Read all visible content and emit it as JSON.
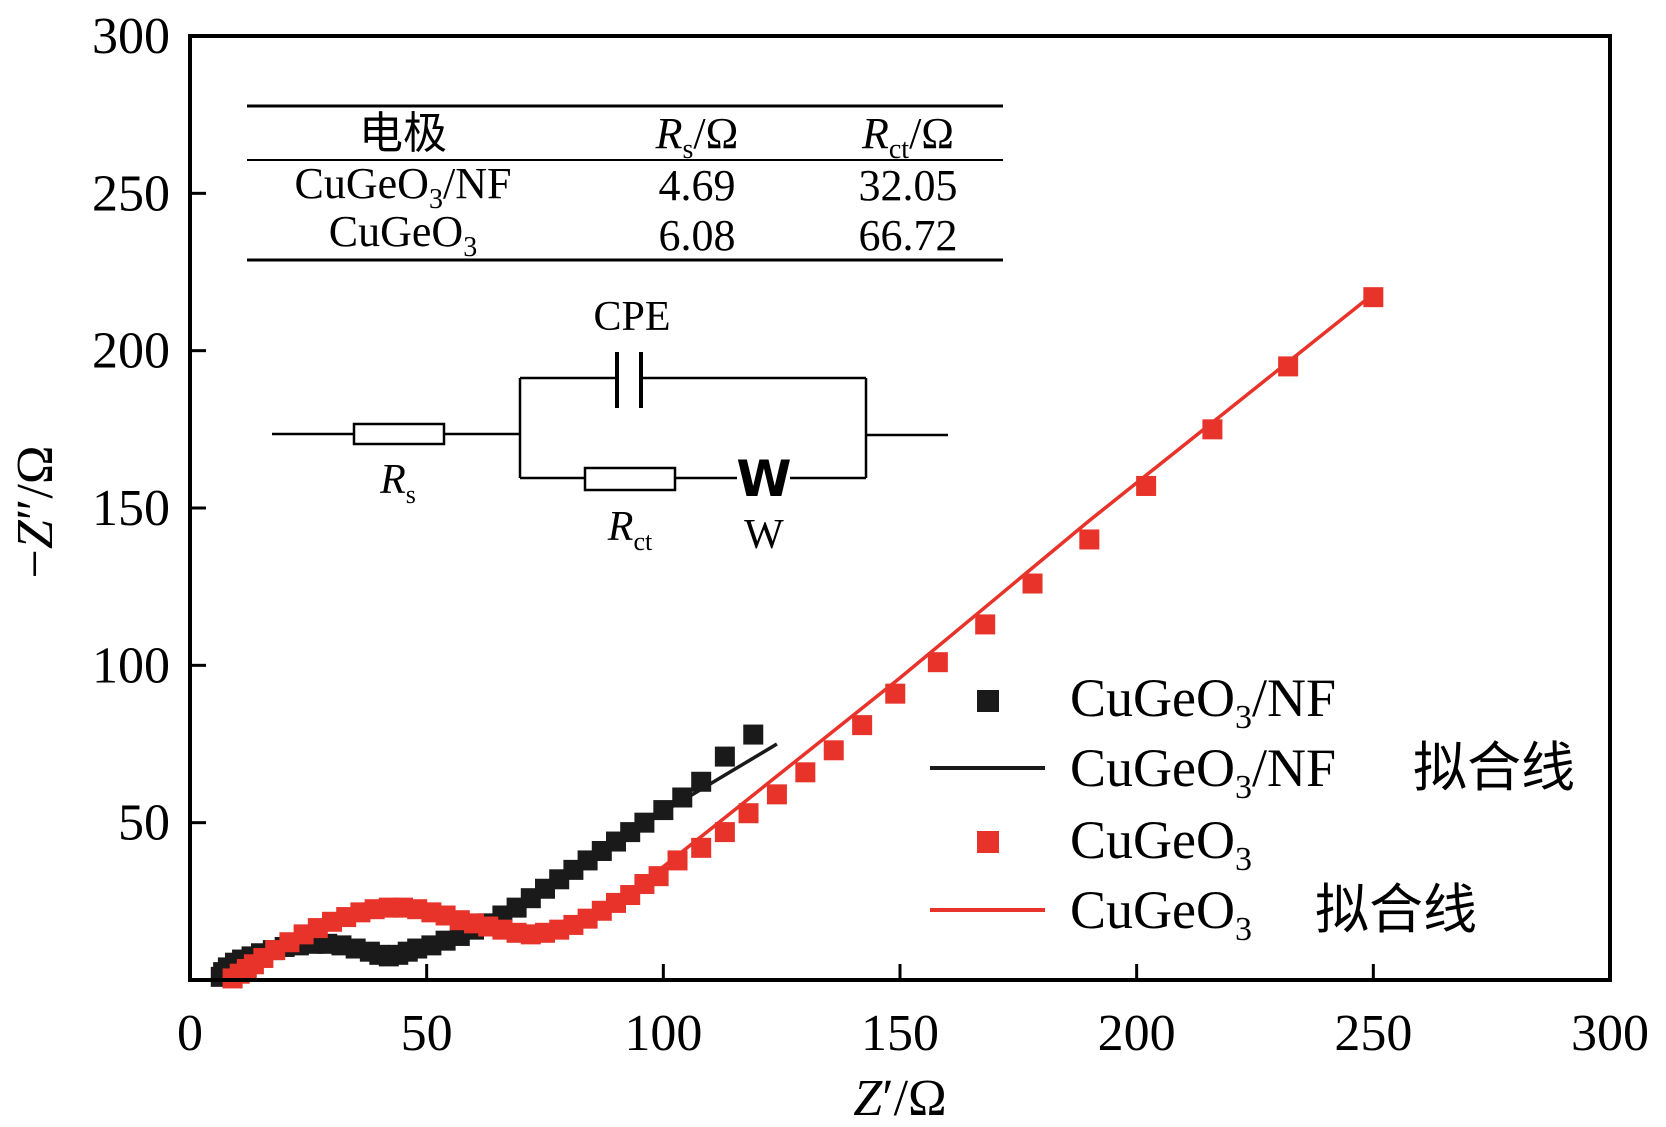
{
  "chart_data": {
    "type": "scatter",
    "xlabel": "Z′/Ω",
    "xlabel_parts": {
      "z": "Z",
      "prime": "′",
      "unit": "/Ω"
    },
    "ylabel": "−Z″/Ω",
    "ylabel_parts": {
      "neg": "−",
      "z": "Z",
      "prime": "″",
      "unit": "/Ω"
    },
    "xlim": [
      0,
      300
    ],
    "ylim": [
      0,
      300
    ],
    "xticks": [
      0,
      50,
      100,
      150,
      200,
      250,
      300
    ],
    "yticks": [
      50,
      100,
      150,
      200,
      250,
      300
    ],
    "colors": {
      "black": "#1a1a1a",
      "red": "#e8332a"
    },
    "series": [
      {
        "name": "CuGeO3/NF",
        "kind": "points",
        "color": "#1a1a1a",
        "points": [
          [
            6.5,
            1
          ],
          [
            7,
            2.5
          ],
          [
            8,
            4
          ],
          [
            9.5,
            5.5
          ],
          [
            11,
            6.5
          ],
          [
            13,
            7.5
          ],
          [
            15,
            8.5
          ],
          [
            17.5,
            9.5
          ],
          [
            20,
            10.5
          ],
          [
            23,
            11
          ],
          [
            26,
            11.5
          ],
          [
            29,
            11.5
          ],
          [
            32,
            11
          ],
          [
            35,
            10
          ],
          [
            38,
            9
          ],
          [
            40,
            8
          ],
          [
            42,
            7.5
          ],
          [
            44,
            8
          ],
          [
            46,
            9
          ],
          [
            48,
            10
          ],
          [
            51,
            11
          ],
          [
            54,
            12.5
          ],
          [
            57,
            14
          ],
          [
            60,
            16
          ],
          [
            63,
            18
          ],
          [
            66,
            20.5
          ],
          [
            69,
            23
          ],
          [
            72,
            26
          ],
          [
            75,
            29
          ],
          [
            78,
            32
          ],
          [
            81,
            35
          ],
          [
            84,
            38
          ],
          [
            87,
            41
          ],
          [
            90,
            44
          ],
          [
            93,
            47
          ],
          [
            96,
            50
          ],
          [
            100,
            54
          ],
          [
            104,
            58
          ],
          [
            108,
            63
          ],
          [
            113,
            71
          ],
          [
            119,
            78
          ]
        ]
      },
      {
        "name": "CuGeO3/NF 拟合线",
        "kind": "line",
        "color": "#1a1a1a",
        "points": [
          [
            6.5,
            1
          ],
          [
            9,
            5
          ],
          [
            13,
            8
          ],
          [
            18,
            10
          ],
          [
            24,
            11.5
          ],
          [
            30,
            11.5
          ],
          [
            35,
            10
          ],
          [
            39,
            8.5
          ],
          [
            42,
            8
          ],
          [
            46,
            9.5
          ],
          [
            51,
            11.5
          ],
          [
            57,
            14.5
          ],
          [
            63,
            18.5
          ],
          [
            70,
            24
          ],
          [
            78,
            32
          ],
          [
            86,
            40
          ],
          [
            95,
            49
          ],
          [
            104,
            57
          ],
          [
            114,
            66
          ],
          [
            124,
            75
          ]
        ]
      },
      {
        "name": "CuGeO3",
        "kind": "points",
        "color": "#e8332a",
        "points": [
          [
            9,
            0.5
          ],
          [
            10.5,
            2
          ],
          [
            12,
            3.5
          ],
          [
            13.5,
            5
          ],
          [
            15.5,
            7
          ],
          [
            18,
            9.5
          ],
          [
            21,
            12
          ],
          [
            24,
            14.5
          ],
          [
            27,
            16.5
          ],
          [
            30,
            18.5
          ],
          [
            33,
            20
          ],
          [
            36,
            21.5
          ],
          [
            39,
            22.5
          ],
          [
            42,
            23
          ],
          [
            45,
            23
          ],
          [
            48,
            22.5
          ],
          [
            51,
            21.5
          ],
          [
            54,
            20.5
          ],
          [
            57,
            19
          ],
          [
            60,
            18
          ],
          [
            63,
            17
          ],
          [
            66,
            16
          ],
          [
            69,
            15
          ],
          [
            72,
            14.5
          ],
          [
            75,
            15
          ],
          [
            78,
            16
          ],
          [
            81,
            17.5
          ],
          [
            84,
            19.5
          ],
          [
            87,
            22
          ],
          [
            90,
            24.5
          ],
          [
            93,
            27
          ],
          [
            96,
            30.5
          ],
          [
            99,
            33
          ],
          [
            103,
            38
          ],
          [
            108,
            42
          ],
          [
            113,
            47
          ],
          [
            118,
            53
          ],
          [
            124,
            59
          ],
          [
            130,
            66
          ],
          [
            136,
            73
          ],
          [
            142,
            81
          ],
          [
            149,
            91
          ],
          [
            158,
            101
          ],
          [
            168,
            113
          ],
          [
            178,
            126
          ],
          [
            190,
            140
          ],
          [
            202,
            157
          ],
          [
            216,
            175
          ],
          [
            232,
            195
          ],
          [
            250,
            217
          ]
        ]
      },
      {
        "name": "CuGeO3 拟合线",
        "kind": "line",
        "color": "#e8332a",
        "points": [
          [
            9,
            0
          ],
          [
            12,
            4
          ],
          [
            16,
            9
          ],
          [
            21,
            13.5
          ],
          [
            27,
            17.5
          ],
          [
            33,
            21
          ],
          [
            39,
            23
          ],
          [
            45,
            23.5
          ],
          [
            51,
            22
          ],
          [
            57,
            19.5
          ],
          [
            63,
            17
          ],
          [
            68,
            15
          ],
          [
            72,
            14
          ],
          [
            76,
            15
          ],
          [
            81,
            17.5
          ],
          [
            87,
            22.5
          ],
          [
            93,
            28.5
          ],
          [
            100,
            36
          ],
          [
            110,
            48
          ],
          [
            120,
            60
          ],
          [
            135,
            78
          ],
          [
            150,
            96
          ],
          [
            170,
            121
          ],
          [
            190,
            146
          ],
          [
            210,
            170
          ],
          [
            230,
            194
          ],
          [
            250,
            218
          ]
        ]
      }
    ],
    "legend": [
      {
        "label": "CuGeO",
        "sub": "3",
        "rest": "/NF",
        "extra": "",
        "type": "square",
        "color": "#1a1a1a"
      },
      {
        "label": "CuGeO",
        "sub": "3",
        "rest": "/NF",
        "extra": "拟合线",
        "type": "line",
        "color": "#1a1a1a"
      },
      {
        "label": "CuGeO",
        "sub": "3",
        "rest": "",
        "extra": "",
        "type": "square",
        "color": "#e8332a"
      },
      {
        "label": "CuGeO",
        "sub": "3",
        "rest": "",
        "extra": "拟合线",
        "type": "line",
        "color": "#e8332a"
      }
    ],
    "legend_position": "bottom-right"
  },
  "inset_table": {
    "header": {
      "col1": "电极",
      "col2": {
        "sym": "R",
        "sub": "s",
        "unit": "/Ω"
      },
      "col3": {
        "sym": "R",
        "sub": "ct",
        "unit": "/Ω"
      }
    },
    "rows": [
      {
        "name": "CuGeO",
        "sub": "3",
        "suffix": "/NF",
        "rs": "4.69",
        "rct": "32.05"
      },
      {
        "name": "CuGeO",
        "sub": "3",
        "suffix": "",
        "rs": "6.08",
        "rct": "66.72"
      }
    ]
  },
  "circuit": {
    "cpe_label": "CPE",
    "rs_label": {
      "sym": "R",
      "sub": "s"
    },
    "rct_label": {
      "sym": "R",
      "sub": "ct"
    },
    "w_symbol": "W",
    "w_label": "W"
  }
}
